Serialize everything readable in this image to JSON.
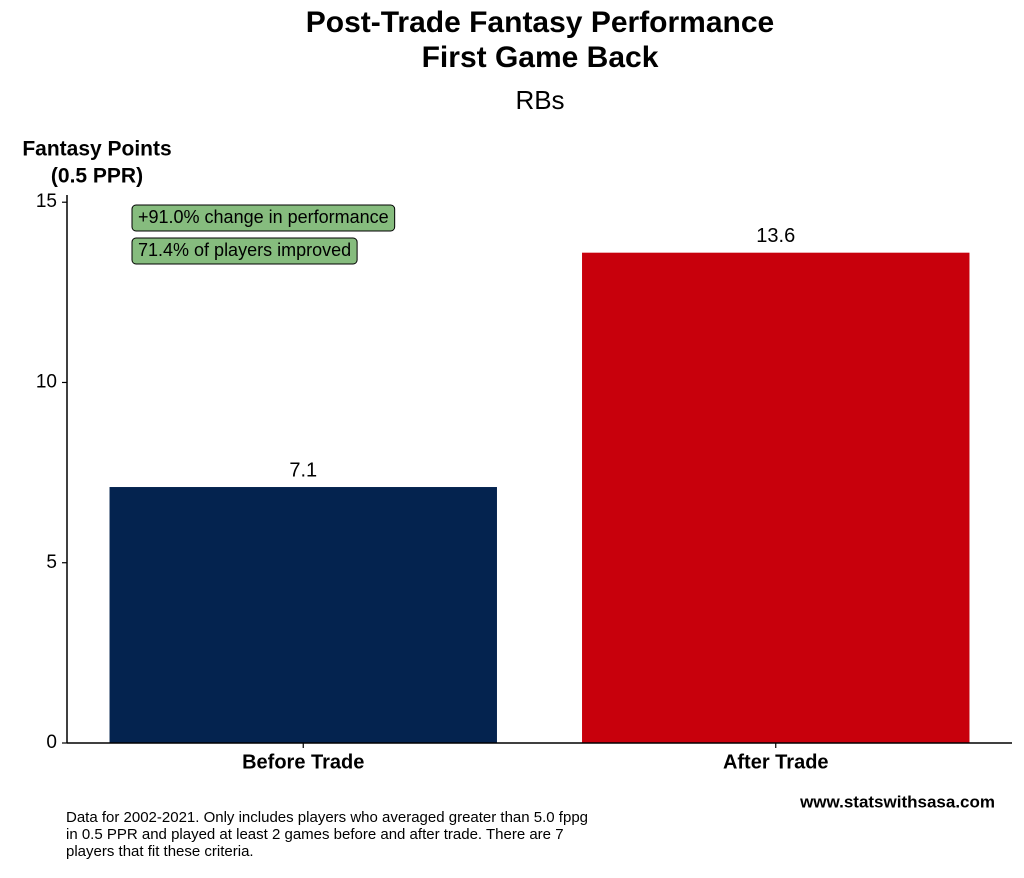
{
  "chart_data": {
    "type": "bar",
    "title": [
      "Post-Trade Fantasy Performance",
      "First Game Back"
    ],
    "subtitle": "RBs",
    "y_label": [
      "Fantasy Points",
      "(0.5 PPR)"
    ],
    "categories": [
      "Before Trade",
      "After Trade"
    ],
    "values": [
      7.1,
      13.6
    ],
    "colors": [
      "#04234f",
      "#c8000c"
    ],
    "ylim": [
      0,
      15.2
    ],
    "yticks": [
      0,
      5,
      10,
      15
    ],
    "grid": false,
    "annotations": [
      "+91.0% change in performance",
      "71.4% of players improved"
    ],
    "caption": [
      "Data for 2002-2021. Only includes players who averaged greater than 5.0 fppg",
      "in 0.5 PPR and played at least 2 games before and after trade. There are 7",
      "players that fit these criteria."
    ],
    "source": "www.statswithsasa.com"
  }
}
